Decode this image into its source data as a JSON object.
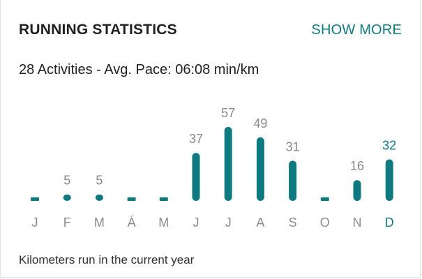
{
  "card": {
    "title": "RUNNING STATISTICS",
    "show_more_label": "SHOW MORE",
    "summary": "28 Activities - Avg. Pace: 06:08 min/km",
    "footer": "Kilometers run in the current year"
  },
  "colors": {
    "accent": "#0e7a80",
    "label_gray": "#8a8a8a",
    "highlight_label": "#0e7a80"
  },
  "chart_data": {
    "type": "bar",
    "categories": [
      "J",
      "F",
      "M",
      "Á",
      "M",
      "J",
      "J",
      "A",
      "S",
      "O",
      "N",
      "D"
    ],
    "values": [
      0,
      5,
      5,
      0,
      0,
      37,
      57,
      49,
      31,
      0,
      16,
      32
    ],
    "value_labels": [
      "",
      "5",
      "5",
      "",
      "",
      "37",
      "57",
      "49",
      "31",
      "",
      "16",
      "32"
    ],
    "highlight_index": 11,
    "ylim": [
      0,
      57
    ]
  }
}
